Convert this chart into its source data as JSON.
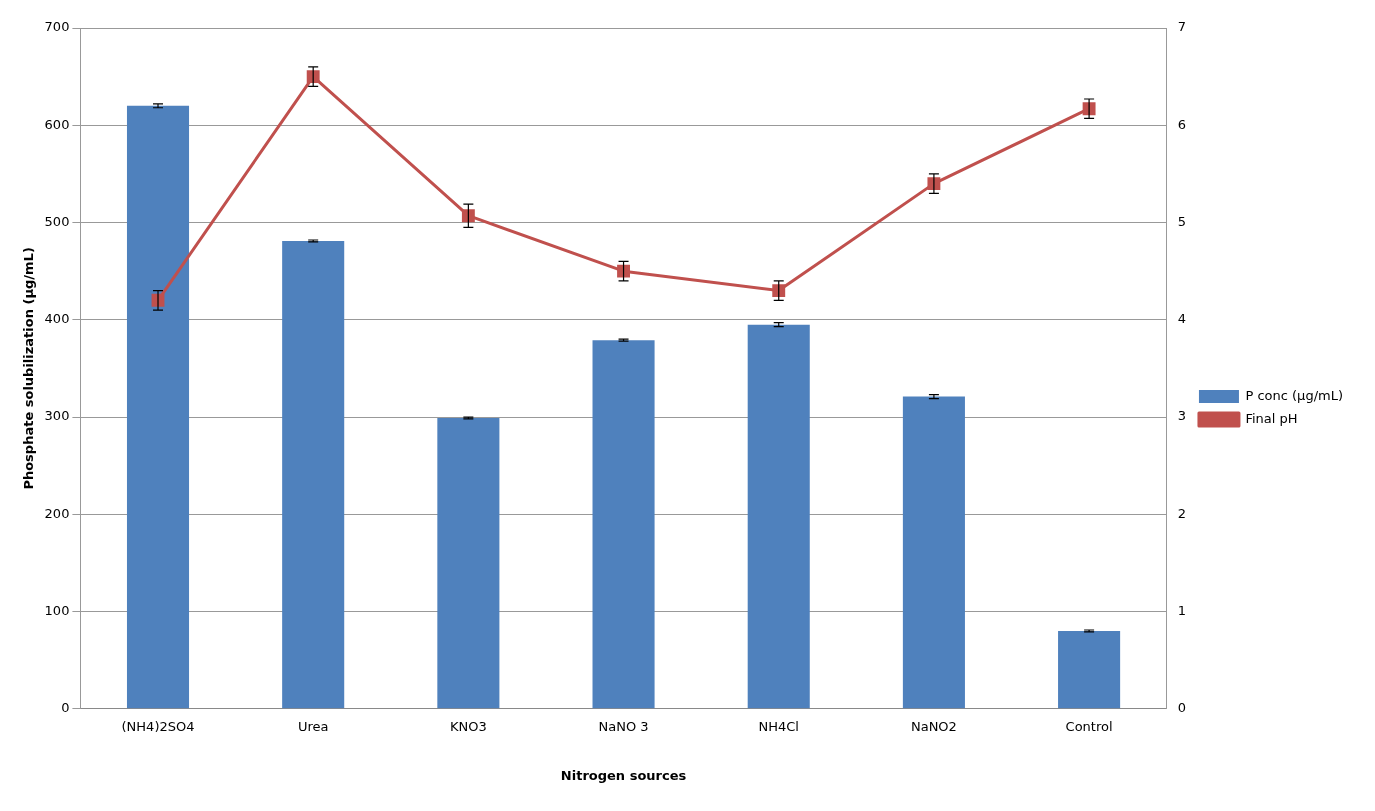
{
  "chart_data": {
    "type": "bar",
    "xlabel": "Nitrogen sources",
    "ylabel": "Phosphate solubilization (µg/mL)",
    "categories": [
      "(NH4)2SO4",
      "Urea",
      "KNO3",
      "NaNO 3",
      "NH4Cl",
      "NaNO2",
      "Control"
    ],
    "series": [
      {
        "name": "P conc (µg/mL)",
        "color": "#4f81bd",
        "values": [
          620,
          481,
          299,
          379,
          395,
          321,
          80
        ],
        "errors": [
          2,
          1,
          1,
          1,
          2,
          2,
          1
        ]
      },
      {
        "name": "Final pH",
        "type": "line",
        "axis": "y2",
        "color": "#c0504d",
        "values": [
          4.2,
          6.5,
          5.07,
          4.5,
          4.3,
          5.4,
          6.17
        ],
        "errors": [
          0.1,
          0.1,
          0.12,
          0.1,
          0.1,
          0.1,
          0.1
        ],
        "marker": "square"
      }
    ],
    "ylim": [
      0,
      700
    ],
    "yticks": [
      0,
      100,
      200,
      300,
      400,
      500,
      600,
      700
    ],
    "y2lim": [
      0,
      7
    ],
    "y2ticks": [
      0,
      1,
      2,
      3,
      4,
      5,
      6,
      7
    ],
    "grid": "y",
    "legend": "right"
  }
}
